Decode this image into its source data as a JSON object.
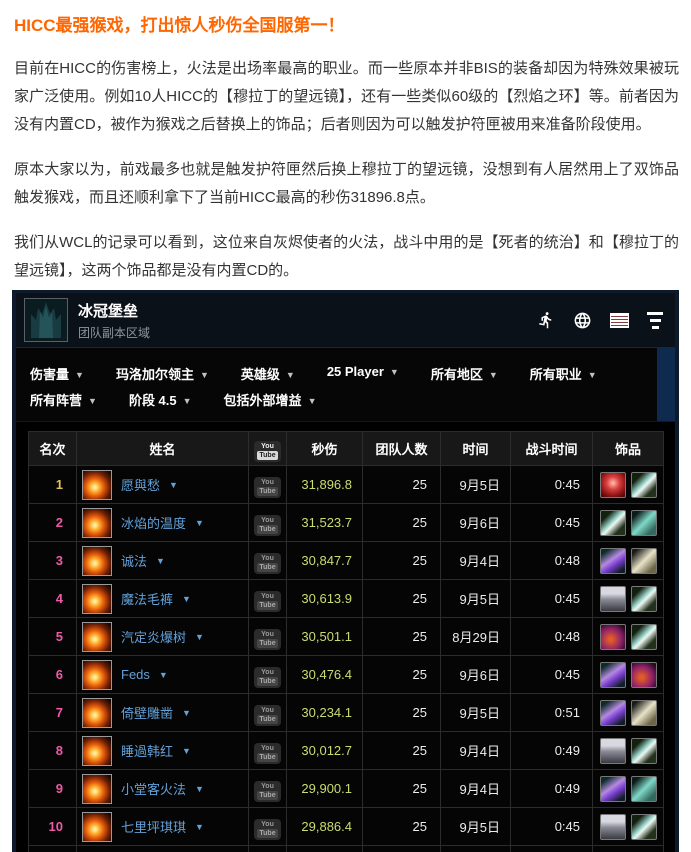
{
  "article": {
    "title": "HICC最强猴戏，打出惊人秒伤全国服第一！",
    "paragraphs": [
      "目前在HICC的伤害榜上，火法是出场率最高的职业。而一些原本并非BIS的装备却因为特殊效果被玩家广泛使用。例如10人HICC的【穆拉丁的望远镜】，还有一些类似60级的【烈焰之环】等。前者因为没有内置CD，被作为猴戏之后替换上的饰品；后者则因为可以触发护符匣被用来准备阶段使用。",
      "原本大家以为，前戏最多也就是触发护符匣然后换上穆拉丁的望远镜，没想到有人居然用上了双饰品触发猴戏，而且还顺利拿下了当前HICC最高的秒伤31896.8点。",
      "我们从WCL的记录可以看到，这位来自灰烬使者的火法，战斗中用的是【死者的统治】和【穆拉丁的望远镜】，这两个饰品都是没有内置CD的。"
    ]
  },
  "widget": {
    "zone": {
      "title": "冰冠堡垒",
      "subtitle": "团队副本区域"
    },
    "filters_row1": [
      {
        "label": "伤害量"
      },
      {
        "label": "玛洛加尔领主"
      },
      {
        "label": "英雄级"
      },
      {
        "label": "25 Player"
      },
      {
        "label": "所有地区"
      },
      {
        "label": "所有职业"
      }
    ],
    "filters_row2": [
      {
        "label": "所有阵营"
      },
      {
        "label": "阶段 4.5"
      },
      {
        "label": "包括外部增益"
      }
    ],
    "youtube_badge": {
      "top": "You",
      "bottom": "Tube"
    },
    "table": {
      "columns": [
        "名次",
        "姓名",
        "秒伤",
        "团队人数",
        "时间",
        "战斗时间",
        "饰品"
      ],
      "rows": [
        {
          "rank": "1",
          "name": "愿與愁",
          "dps": "31,896.8",
          "size": "25",
          "date": "9月5日",
          "duration": "0:45",
          "trinkets": [
            "dominion",
            "telescope"
          ]
        },
        {
          "rank": "2",
          "name": "冰焰的温度",
          "dps": "31,523.7",
          "size": "25",
          "date": "9月6日",
          "duration": "0:45",
          "trinkets": [
            "telescope",
            "claws"
          ]
        },
        {
          "rank": "3",
          "name": "诚法",
          "dps": "30,847.7",
          "size": "25",
          "date": "9月4日",
          "duration": "0:48",
          "trinkets": [
            "shard",
            "gauntlets"
          ]
        },
        {
          "rank": "4",
          "name": "魔法毛裤",
          "dps": "30,613.9",
          "size": "25",
          "date": "9月5日",
          "duration": "0:45",
          "trinkets": [
            "armor",
            "telescope"
          ]
        },
        {
          "rank": "5",
          "name": "汽定炎爆树",
          "dps": "30,501.1",
          "size": "25",
          "date": "8月29日",
          "duration": "0:48",
          "trinkets": [
            "swirl",
            "telescope"
          ]
        },
        {
          "rank": "6",
          "name": "Feds",
          "dps": "30,476.4",
          "size": "25",
          "date": "9月6日",
          "duration": "0:45",
          "trinkets": [
            "shard",
            "swirl"
          ]
        },
        {
          "rank": "7",
          "name": "倚壁雕凿",
          "dps": "30,234.1",
          "size": "25",
          "date": "9月5日",
          "duration": "0:51",
          "trinkets": [
            "shard",
            "gauntlets"
          ]
        },
        {
          "rank": "8",
          "name": "睡過韩红",
          "dps": "30,012.7",
          "size": "25",
          "date": "9月4日",
          "duration": "0:49",
          "trinkets": [
            "armor",
            "telescope"
          ]
        },
        {
          "rank": "9",
          "name": "小堂客火法",
          "dps": "29,900.1",
          "size": "25",
          "date": "9月4日",
          "duration": "0:49",
          "trinkets": [
            "shard",
            "claws"
          ]
        },
        {
          "rank": "10",
          "name": "七里坪琪琪",
          "dps": "29,886.4",
          "size": "25",
          "date": "9月5日",
          "duration": "0:45",
          "trinkets": [
            "armor",
            "telescope"
          ]
        },
        {
          "rank": "",
          "name": "",
          "dps": "",
          "size": "",
          "date": "",
          "duration": "",
          "trinkets": []
        }
      ]
    },
    "colors": {
      "title_accent": "#ff6600",
      "rank_top": "#e3c25c",
      "rank": "#ee5aa8",
      "player_link": "#63a1d9",
      "dps_value": "#c9dd70",
      "filter_panel_blue": "#0f2a4f"
    }
  }
}
